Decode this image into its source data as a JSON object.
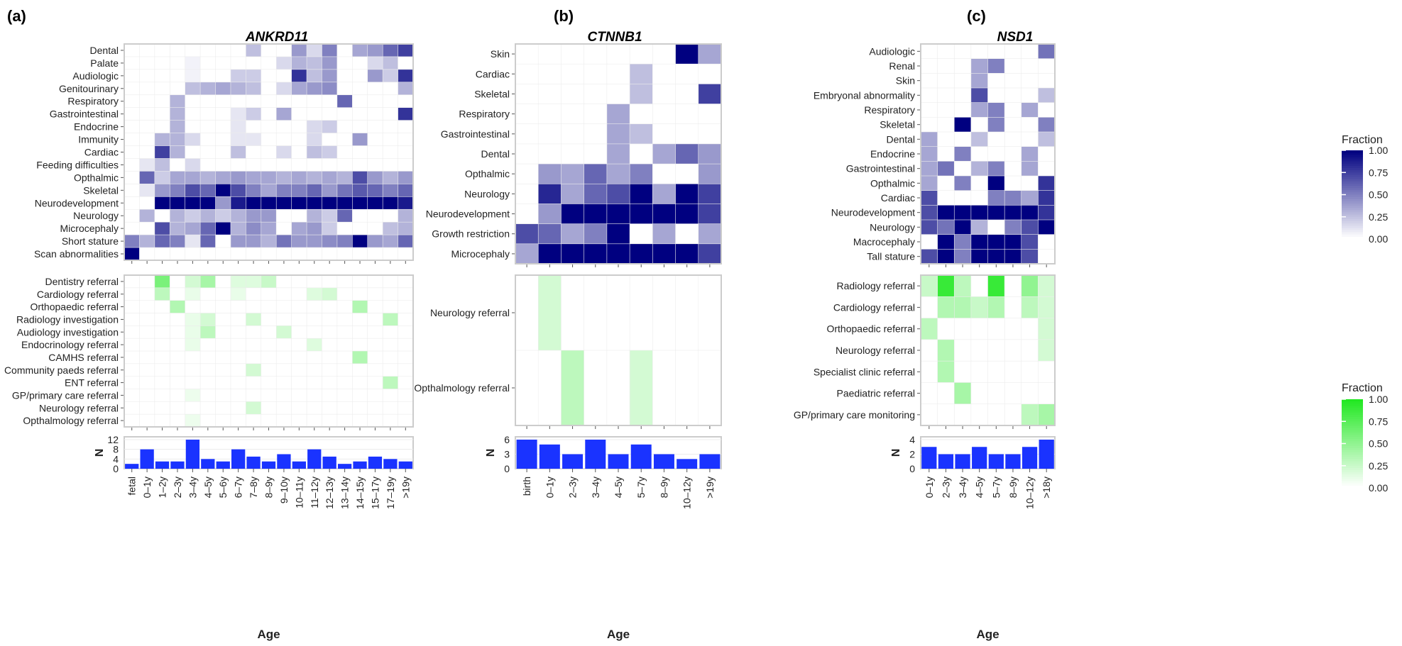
{
  "panels": [
    {
      "label": "(a)",
      "title": "ANKRD11",
      "ages": [
        "fetal",
        "0–1y",
        "1–2y",
        "2–3y",
        "3–4y",
        "4–5y",
        "5–6y",
        "6–7y",
        "7–8y",
        "8–9y",
        "9–10y",
        "10–11y",
        "11–12y",
        "12–13y",
        "13–14y",
        "14–15y",
        "15–17y",
        "17–19y",
        ">19y"
      ],
      "phenotypes": {
        "rows": [
          "Dental",
          "Palate",
          "Audiologic",
          "Genitourinary",
          "Respiratory",
          "Gastrointestinal",
          "Endocrine",
          "Immunity",
          "Cardiac",
          "Feeding difficulties",
          "Opthalmic",
          "Skeletal",
          "Neurodevelopment",
          "Neurology",
          "Microcephaly",
          "Short stature",
          "Scan abnormalities"
        ],
        "values": [
          [
            0,
            0,
            0,
            0,
            0,
            0,
            0,
            0,
            0.25,
            0,
            0,
            0.4,
            0.15,
            0.5,
            0,
            0.35,
            0.4,
            0.6,
            0.75
          ],
          [
            0,
            0,
            0,
            0,
            0.05,
            0,
            0,
            0,
            0,
            0,
            0.15,
            0.3,
            0.25,
            0.4,
            0,
            0,
            0.15,
            0.25,
            0
          ],
          [
            0,
            0,
            0,
            0,
            0.05,
            0,
            0,
            0.2,
            0.2,
            0,
            0,
            0.8,
            0.25,
            0.4,
            0,
            0,
            0.4,
            0.2,
            0.8
          ],
          [
            0,
            0,
            0,
            0,
            0.25,
            0.3,
            0.35,
            0.3,
            0.25,
            0,
            0.15,
            0.35,
            0.4,
            0.45,
            0,
            0,
            0,
            0,
            0.3
          ],
          [
            0,
            0,
            0,
            0.3,
            0,
            0,
            0,
            0,
            0,
            0,
            0,
            0,
            0,
            0,
            0.6,
            0,
            0,
            0,
            0
          ],
          [
            0,
            0,
            0,
            0.3,
            0,
            0,
            0,
            0.1,
            0.2,
            0,
            0.35,
            0,
            0,
            0,
            0,
            0,
            0,
            0,
            0.8
          ],
          [
            0,
            0,
            0,
            0.3,
            0,
            0,
            0,
            0.1,
            0,
            0,
            0,
            0,
            0.15,
            0.2,
            0,
            0,
            0,
            0,
            0
          ],
          [
            0,
            0,
            0.3,
            0.3,
            0.15,
            0,
            0,
            0.1,
            0.1,
            0,
            0,
            0,
            0.15,
            0,
            0,
            0.4,
            0,
            0,
            0
          ],
          [
            0,
            0,
            0.75,
            0.3,
            0,
            0,
            0,
            0.25,
            0,
            0,
            0.15,
            0,
            0.25,
            0.2,
            0,
            0,
            0,
            0,
            0
          ],
          [
            0,
            0.1,
            0.25,
            0,
            0.15,
            0,
            0,
            0,
            0,
            0,
            0,
            0,
            0,
            0,
            0,
            0,
            0,
            0,
            0
          ],
          [
            0,
            0.6,
            0.2,
            0.35,
            0.35,
            0.3,
            0.35,
            0.4,
            0.35,
            0.35,
            0.3,
            0.35,
            0.3,
            0.35,
            0.3,
            0.7,
            0.4,
            0.3,
            0.4
          ],
          [
            0,
            0.1,
            0.4,
            0.5,
            0.7,
            0.6,
            1.0,
            0.7,
            0.5,
            0.35,
            0.5,
            0.5,
            0.6,
            0.4,
            0.55,
            0.65,
            0.6,
            0.5,
            0.6
          ],
          [
            0,
            0,
            1,
            1,
            1,
            1,
            0.4,
            0.9,
            1,
            1,
            1,
            1,
            1,
            1,
            1,
            1,
            1,
            1,
            0.9
          ],
          [
            0,
            0.3,
            0,
            0.3,
            0.2,
            0.3,
            0.2,
            0.3,
            0.4,
            0.4,
            0,
            0,
            0.3,
            0.2,
            0.6,
            0,
            0,
            0,
            0.3
          ],
          [
            0,
            0,
            0.7,
            0.3,
            0.35,
            0.6,
            1.0,
            0.3,
            0.45,
            0.35,
            0,
            0.35,
            0.4,
            0.2,
            0,
            0,
            0,
            0.25,
            0.3
          ],
          [
            0.5,
            0.3,
            0.6,
            0.5,
            0.1,
            0.6,
            0,
            0.4,
            0.4,
            0.3,
            0.55,
            0.4,
            0.4,
            0.45,
            0.5,
            1.0,
            0.4,
            0.35,
            0.6
          ],
          [
            1,
            0,
            0,
            0,
            0,
            0,
            0,
            0,
            0,
            0,
            0,
            0,
            0,
            0,
            0,
            0,
            0,
            0,
            0
          ]
        ]
      },
      "referrals": {
        "rows": [
          "Dentistry referral",
          "Cardiology referral",
          "Orthopaedic referral",
          "Radiology investigation",
          "Audiology investigation",
          "Endocrinology referral",
          "CAMHS referral",
          "Community paeds referral",
          "ENT referral",
          "GP/primary care referral",
          "Neurology referral",
          "Opthalmology referral"
        ],
        "values": [
          [
            0,
            0,
            0.6,
            0,
            0.2,
            0.4,
            0,
            0.15,
            0.15,
            0.25,
            0,
            0,
            0,
            0,
            0,
            0,
            0,
            0,
            0
          ],
          [
            0,
            0,
            0.3,
            0,
            0.1,
            0,
            0,
            0.1,
            0,
            0,
            0,
            0,
            0.15,
            0.2,
            0,
            0,
            0,
            0,
            0
          ],
          [
            0,
            0,
            0,
            0.35,
            0,
            0,
            0,
            0,
            0,
            0,
            0,
            0,
            0,
            0,
            0,
            0.35,
            0,
            0,
            0
          ],
          [
            0,
            0,
            0,
            0,
            0.1,
            0.2,
            0,
            0,
            0.2,
            0,
            0,
            0,
            0,
            0,
            0,
            0,
            0,
            0.3,
            0
          ],
          [
            0,
            0,
            0,
            0,
            0.1,
            0.3,
            0,
            0,
            0,
            0,
            0.2,
            0,
            0,
            0,
            0,
            0,
            0,
            0,
            0
          ],
          [
            0,
            0,
            0,
            0,
            0.1,
            0,
            0,
            0,
            0,
            0,
            0,
            0,
            0.15,
            0,
            0,
            0,
            0,
            0,
            0
          ],
          [
            0,
            0,
            0,
            0,
            0,
            0,
            0,
            0,
            0,
            0,
            0,
            0,
            0,
            0,
            0,
            0.35,
            0,
            0,
            0
          ],
          [
            0,
            0,
            0,
            0,
            0,
            0,
            0,
            0,
            0.2,
            0,
            0,
            0,
            0,
            0,
            0,
            0,
            0,
            0,
            0
          ],
          [
            0,
            0,
            0,
            0,
            0,
            0,
            0,
            0,
            0,
            0,
            0,
            0,
            0,
            0,
            0,
            0,
            0,
            0.3,
            0
          ],
          [
            0,
            0,
            0,
            0,
            0.08,
            0,
            0,
            0,
            0,
            0,
            0,
            0,
            0,
            0,
            0,
            0,
            0,
            0,
            0
          ],
          [
            0,
            0,
            0,
            0,
            0,
            0,
            0,
            0,
            0.2,
            0,
            0,
            0,
            0,
            0,
            0,
            0,
            0,
            0,
            0
          ],
          [
            0,
            0,
            0,
            0,
            0.08,
            0,
            0,
            0,
            0,
            0,
            0,
            0,
            0,
            0,
            0,
            0,
            0,
            0,
            0
          ]
        ]
      },
      "counts": [
        2,
        8,
        3,
        3,
        12,
        4,
        3,
        8,
        5,
        3,
        6,
        3,
        8,
        5,
        2,
        3,
        5,
        4,
        3
      ],
      "n_ticks": [
        0,
        4,
        8,
        12
      ],
      "n_max": 12
    },
    {
      "label": "(b)",
      "title": "CTNNB1",
      "ages": [
        "birth",
        "0–1y",
        "2–3y",
        "3–4y",
        "4–5y",
        "5–7y",
        "8–9y",
        "10–12y",
        ">19y"
      ],
      "phenotypes": {
        "rows": [
          "Skin",
          "Cardiac",
          "Skeletal",
          "Respiratory",
          "Gastrointestinal",
          "Dental",
          "Opthalmic",
          "Neurology",
          "Neurodevelopment",
          "Growth restriction",
          "Microcephaly"
        ],
        "values": [
          [
            0,
            0,
            0,
            0,
            0,
            0,
            0,
            1,
            0.35
          ],
          [
            0,
            0,
            0,
            0,
            0,
            0.25,
            0,
            0,
            0
          ],
          [
            0,
            0,
            0,
            0,
            0,
            0.25,
            0,
            0,
            0.75
          ],
          [
            0,
            0,
            0,
            0,
            0.35,
            0,
            0,
            0,
            0
          ],
          [
            0,
            0,
            0,
            0,
            0.35,
            0.25,
            0,
            0,
            0
          ],
          [
            0,
            0,
            0,
            0,
            0.35,
            0,
            0.35,
            0.6,
            0.4
          ],
          [
            0,
            0.4,
            0.35,
            0.6,
            0.35,
            0.5,
            0,
            0,
            0.4
          ],
          [
            0,
            0.85,
            0.35,
            0.6,
            0.7,
            1,
            0.35,
            1,
            0.75
          ],
          [
            0,
            0.4,
            1,
            1,
            1,
            1,
            1,
            1,
            0.75
          ],
          [
            0.7,
            0.6,
            0.35,
            0.5,
            1,
            0,
            0.35,
            0,
            0.35
          ],
          [
            0.35,
            1,
            1,
            1,
            1,
            1,
            1,
            1,
            0.75
          ]
        ]
      },
      "referrals": {
        "rows": [
          "Neurology referral",
          "Opthalmology referral"
        ],
        "values": [
          [
            0,
            0.2,
            0,
            0,
            0,
            0,
            0,
            0,
            0
          ],
          [
            0,
            0,
            0.3,
            0,
            0,
            0.2,
            0,
            0,
            0
          ]
        ]
      },
      "counts": [
        6,
        5,
        3,
        6,
        3,
        5,
        3,
        2,
        3
      ],
      "n_ticks": [
        0,
        3,
        6
      ],
      "n_max": 6
    },
    {
      "label": "(c)",
      "title": "NSD1",
      "ages": [
        "0–1y",
        "2–3y",
        "3–4y",
        "4–5y",
        "5–7y",
        "8–9y",
        "10–12y",
        ">18y"
      ],
      "phenotypes": {
        "rows": [
          "Audiologic",
          "Renal",
          "Skin",
          "Embryonal abnormality",
          "Respiratory",
          "Skeletal",
          "Dental",
          "Endocrine",
          "Gastrointestinal",
          "Opthalmic",
          "Cardiac",
          "Neurodevelopment",
          "Neurology",
          "Macrocephaly",
          "Tall stature"
        ],
        "values": [
          [
            0,
            0,
            0,
            0,
            0,
            0,
            0,
            0.55
          ],
          [
            0,
            0,
            0,
            0.35,
            0.5,
            0,
            0,
            0
          ],
          [
            0,
            0,
            0,
            0.35,
            0,
            0,
            0,
            0
          ],
          [
            0,
            0,
            0,
            0.7,
            0,
            0,
            0,
            0.25
          ],
          [
            0,
            0,
            0,
            0.35,
            0.5,
            0,
            0.35,
            0
          ],
          [
            0,
            0,
            1,
            0,
            0.5,
            0,
            0,
            0.5
          ],
          [
            0.35,
            0,
            0,
            0.25,
            0,
            0,
            0,
            0.25
          ],
          [
            0.35,
            0,
            0.5,
            0,
            0,
            0,
            0.35,
            0
          ],
          [
            0.35,
            0.55,
            0,
            0.3,
            0.5,
            0,
            0.35,
            0
          ],
          [
            0.35,
            0,
            0.5,
            0,
            1,
            0,
            0,
            0.8
          ],
          [
            0.7,
            0,
            0,
            0,
            0.5,
            0.5,
            0.35,
            0.8
          ],
          [
            0.7,
            1,
            1,
            1,
            1,
            1,
            1,
            0.8
          ],
          [
            0.7,
            0.55,
            1,
            0.3,
            0,
            0.5,
            0.7,
            1
          ],
          [
            0,
            1,
            0.5,
            1,
            1,
            1,
            0.7,
            0
          ],
          [
            0.7,
            1,
            0.5,
            1,
            1,
            1,
            0.7,
            0
          ]
        ]
      },
      "referrals": {
        "rows": [
          "Radiology referral",
          "Cardiology referral",
          "Orthopaedic referral",
          "Neurology referral",
          "Specialist clinic referral",
          "Paediatric referral",
          "GP/primary care monitoring"
        ],
        "values": [
          [
            0.25,
            0.9,
            0.3,
            0,
            0.9,
            0,
            0.5,
            0.2
          ],
          [
            0,
            0.35,
            0.35,
            0.25,
            0.35,
            0,
            0.3,
            0.2
          ],
          [
            0.3,
            0,
            0,
            0,
            0,
            0,
            0,
            0.2
          ],
          [
            0,
            0.35,
            0,
            0,
            0,
            0,
            0,
            0.2
          ],
          [
            0,
            0.35,
            0,
            0,
            0,
            0,
            0,
            0
          ],
          [
            0,
            0,
            0.4,
            0,
            0,
            0,
            0,
            0
          ],
          [
            0,
            0,
            0,
            0,
            0,
            0,
            0.3,
            0.4
          ]
        ]
      },
      "counts": [
        3,
        2,
        2,
        3,
        2,
        2,
        3,
        4
      ],
      "n_ticks": [
        0,
        2,
        4
      ],
      "n_max": 4
    }
  ],
  "legends": {
    "phenotype": {
      "title": "Fraction",
      "ticks": [
        "1.00",
        "0.75",
        "0.50",
        "0.25",
        "0.00"
      ],
      "color_high": "#000080"
    },
    "referral": {
      "title": "Fraction",
      "ticks": [
        "1.00",
        "0.75",
        "0.50",
        "0.25",
        "0.00"
      ],
      "color_high": "#22e822"
    }
  },
  "axis": {
    "n_label": "N",
    "age_label": "Age"
  },
  "chart_data": [
    {
      "type": "heatmap",
      "title": "ANKRD11",
      "panel": "(a)"
    },
    {
      "type": "heatmap",
      "title": "CTNNB1",
      "panel": "(b)"
    },
    {
      "type": "heatmap",
      "title": "NSD1",
      "panel": "(c)"
    }
  ],
  "colors": {
    "purple_high": "#000080",
    "green_high": "#22e822",
    "bar": "#1a33ff",
    "panel_border": "#cccccc",
    "grid": "#ececec"
  }
}
